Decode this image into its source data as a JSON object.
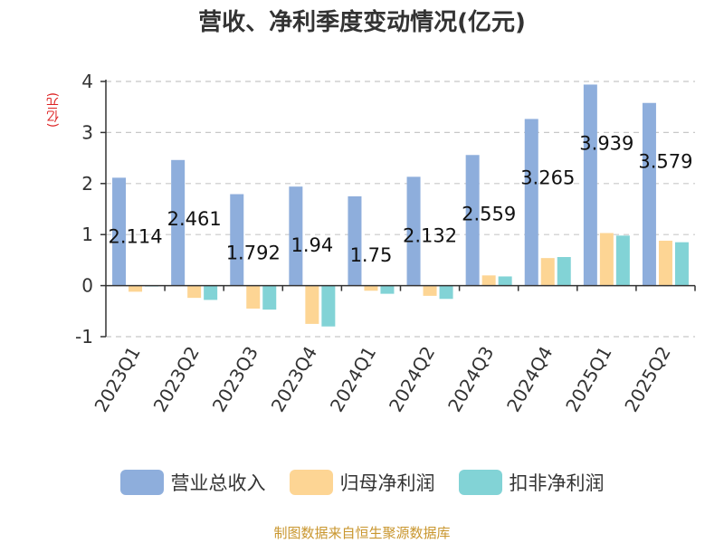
{
  "chart_data": {
    "type": "bar",
    "title": "营收、净利季度变动情况(亿元)",
    "y_unit_label": "(亿元)",
    "categories": [
      "2023Q1",
      "2023Q2",
      "2023Q3",
      "2023Q4",
      "2024Q1",
      "2024Q2",
      "2024Q3",
      "2024Q4",
      "2025Q1",
      "2025Q2"
    ],
    "series": [
      {
        "name": "营业总收入",
        "color": "#8eaedc",
        "values": [
          2.114,
          2.461,
          1.792,
          1.94,
          1.75,
          2.132,
          2.559,
          3.265,
          3.939,
          3.579
        ]
      },
      {
        "name": "归母净利润",
        "color": "#fdd594",
        "values": [
          -0.12,
          -0.24,
          -0.45,
          -0.75,
          -0.1,
          -0.2,
          0.2,
          0.54,
          1.03,
          0.88
        ]
      },
      {
        "name": "扣非净利润",
        "color": "#82d3d6",
        "values": [
          -0.01,
          -0.28,
          -0.47,
          -0.8,
          -0.16,
          -0.26,
          0.18,
          0.56,
          0.98,
          0.85
        ]
      }
    ],
    "data_labels": [
      "2.114",
      "2.461",
      "1.792",
      "1.94",
      "1.75",
      "2.132",
      "2.559",
      "3.265",
      "3.939",
      "3.579"
    ],
    "y_ticks": [
      "-1",
      "0",
      "1",
      "2",
      "3",
      "4"
    ],
    "ylim": [
      -1,
      4
    ],
    "grid": true,
    "legend_position": "bottom"
  },
  "source_text": "制图数据来自恒生聚源数据库"
}
